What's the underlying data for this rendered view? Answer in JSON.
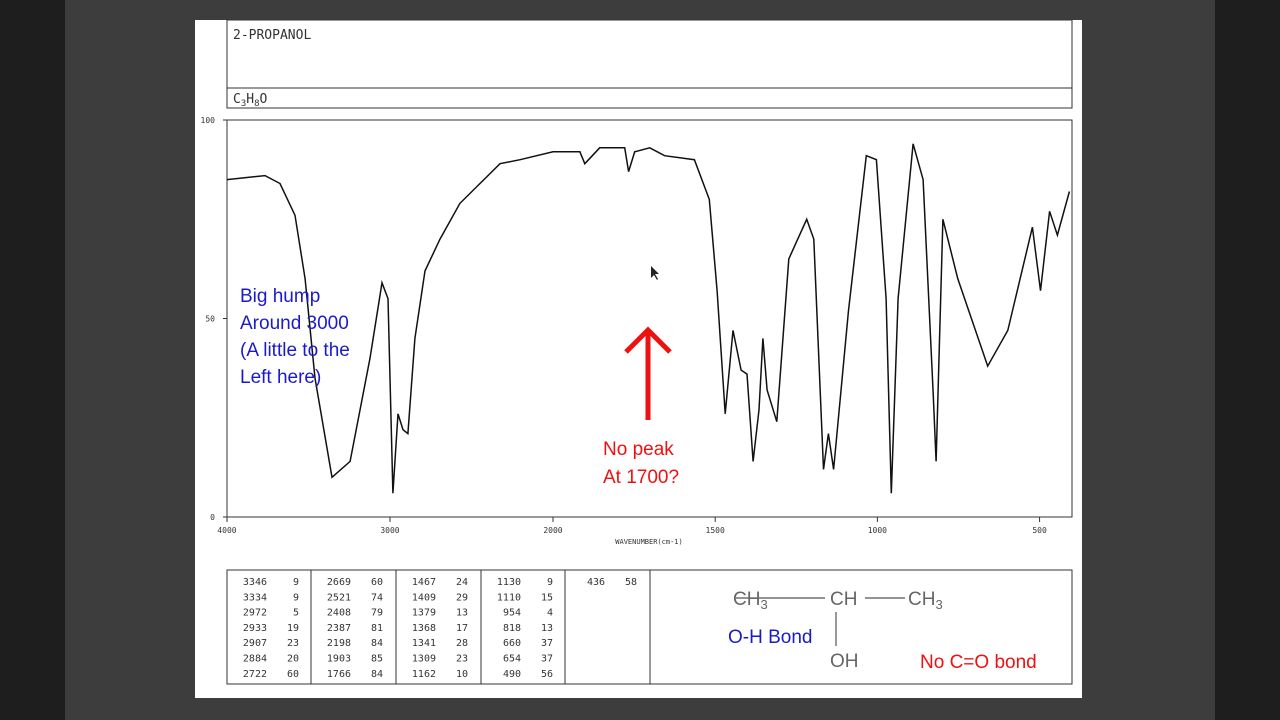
{
  "header": {
    "title": "2-PROPANOL",
    "formula": [
      "C",
      "3",
      "H",
      "8",
      "O"
    ]
  },
  "chart_data": {
    "type": "line",
    "x_label": "WAVENUMBER(cm-1)",
    "xlim": [
      4000,
      400
    ],
    "x_scale_break": 2000,
    "xticks": [
      4000,
      3000,
      2000,
      1500,
      1000,
      500
    ],
    "ylim": [
      0,
      100
    ],
    "yticks": [
      0,
      50,
      100
    ],
    "series": [
      {
        "color": "#111111",
        "x": [
          4000,
          3767,
          3675,
          3583,
          3521,
          3460,
          3356,
          3245,
          3123,
          3049,
          3012,
          2982,
          2951,
          2920,
          2890,
          2847,
          2785,
          2693,
          2571,
          2448,
          2325,
          2202,
          2000,
          1917,
          1902,
          1856,
          1779,
          1767,
          1748,
          1702,
          1656,
          1564,
          1518,
          1494,
          1469,
          1445,
          1420,
          1402,
          1383,
          1365,
          1353,
          1340,
          1310,
          1273,
          1218,
          1196,
          1166,
          1151,
          1135,
          1089,
          1034,
          1003,
          973,
          957,
          936,
          890,
          859,
          828,
          819,
          798,
          752,
          660,
          598,
          522,
          497,
          469,
          445,
          408
        ],
        "values": [
          85,
          86,
          84,
          76,
          60,
          35,
          10,
          14,
          40,
          59,
          55,
          6,
          26,
          22,
          21,
          45,
          62,
          70,
          79,
          84,
          89,
          90,
          92,
          92,
          89,
          93,
          93,
          87,
          92,
          93,
          91,
          90,
          80,
          57,
          26,
          47,
          37,
          36,
          14,
          27,
          45,
          32,
          24,
          65,
          75,
          70,
          12,
          21,
          12,
          52,
          91,
          90,
          55,
          6,
          55,
          94,
          85,
          31,
          14,
          75,
          60,
          38,
          47,
          73,
          57,
          77,
          71,
          82
        ]
      }
    ],
    "annotations": [
      {
        "lines": [
          "Big hump",
          "Around 3000",
          "(A little to the",
          "Left here)"
        ],
        "color": "#1a1acc"
      },
      {
        "lines": [
          "No peak",
          "At 1700?"
        ],
        "color": "#ee1111"
      }
    ]
  },
  "peak_table": {
    "columns": [
      [
        [
          3346,
          9
        ],
        [
          3334,
          9
        ],
        [
          2972,
          5
        ],
        [
          2933,
          19
        ],
        [
          2907,
          23
        ],
        [
          2884,
          20
        ],
        [
          2722,
          60
        ]
      ],
      [
        [
          2669,
          60
        ],
        [
          2521,
          74
        ],
        [
          2408,
          79
        ],
        [
          2387,
          81
        ],
        [
          2198,
          84
        ],
        [
          1903,
          85
        ],
        [
          1766,
          84
        ]
      ],
      [
        [
          1467,
          24
        ],
        [
          1409,
          29
        ],
        [
          1379,
          13
        ],
        [
          1368,
          17
        ],
        [
          1341,
          28
        ],
        [
          1309,
          23
        ],
        [
          1162,
          10
        ]
      ],
      [
        [
          1130,
          9
        ],
        [
          1110,
          15
        ],
        [
          954,
          4
        ],
        [
          818,
          13
        ],
        [
          660,
          37
        ],
        [
          654,
          37
        ],
        [
          490,
          56
        ]
      ],
      [
        [
          436,
          58
        ]
      ]
    ]
  },
  "structure": {
    "left": "CH",
    "left_sub": "3",
    "center": "CH",
    "right": "CH",
    "right_sub": "3",
    "bottom": "OH",
    "bond_note": "O-H Bond",
    "carbonyl_note": "No C=O bond"
  }
}
